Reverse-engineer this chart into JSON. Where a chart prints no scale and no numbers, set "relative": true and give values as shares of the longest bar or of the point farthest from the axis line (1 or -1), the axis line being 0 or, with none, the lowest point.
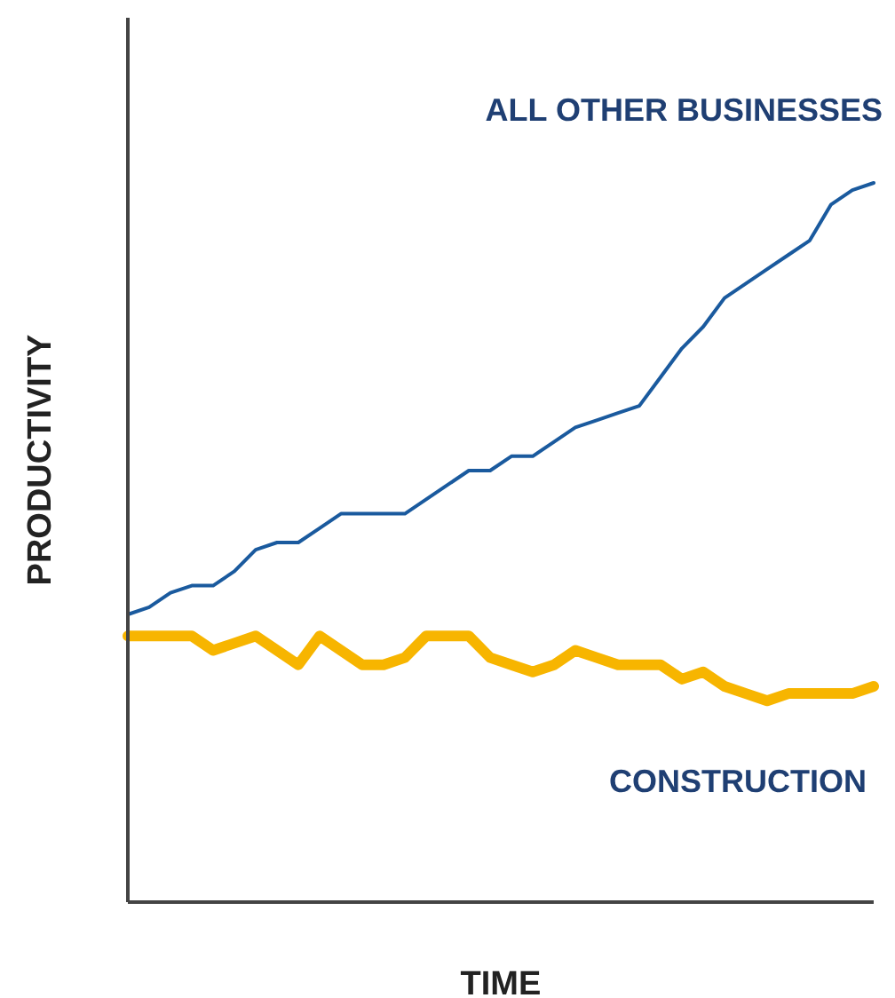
{
  "chart_data": {
    "type": "line",
    "relative": true,
    "xlabel": "TIME",
    "ylabel": "PRODUCTIVITY",
    "categories": [
      null,
      null,
      null,
      null,
      null,
      null,
      null,
      null,
      null,
      null,
      null,
      null,
      null,
      null,
      null,
      null,
      null,
      null,
      null,
      null,
      null,
      null,
      null,
      null,
      null,
      null,
      null,
      null,
      null,
      null,
      null,
      null,
      null,
      null,
      null,
      null
    ],
    "series": [
      {
        "name": "ALL OTHER BUSINESSES",
        "color": "#1a5a9e",
        "values": [
          0.4,
          0.41,
          0.43,
          0.44,
          0.44,
          0.46,
          0.49,
          0.5,
          0.5,
          0.52,
          0.54,
          0.54,
          0.54,
          0.54,
          0.56,
          0.58,
          0.6,
          0.6,
          0.62,
          0.62,
          0.64,
          0.66,
          0.67,
          0.68,
          0.69,
          0.73,
          0.77,
          0.8,
          0.84,
          0.86,
          0.88,
          0.9,
          0.92,
          0.97,
          0.99,
          1.0
        ]
      },
      {
        "name": "CONSTRUCTION",
        "color": "#f7b500",
        "values": [
          0.37,
          0.37,
          0.37,
          0.37,
          0.35,
          0.36,
          0.37,
          0.35,
          0.33,
          0.37,
          0.35,
          0.33,
          0.33,
          0.34,
          0.37,
          0.37,
          0.37,
          0.34,
          0.33,
          0.32,
          0.33,
          0.35,
          0.34,
          0.33,
          0.33,
          0.33,
          0.31,
          0.32,
          0.3,
          0.29,
          0.28,
          0.29,
          0.29,
          0.29,
          0.29,
          0.3
        ]
      }
    ]
  }
}
